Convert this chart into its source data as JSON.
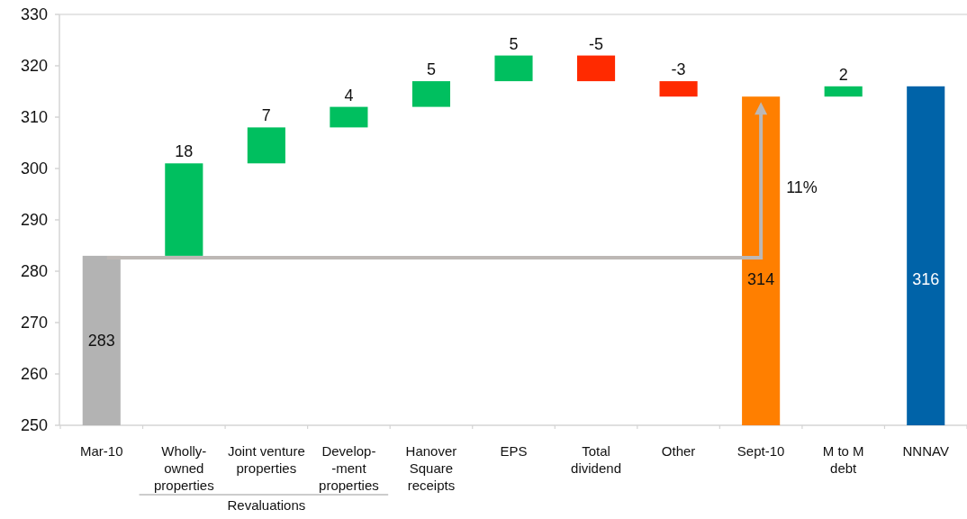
{
  "chart_data": {
    "type": "bar",
    "categories": [
      "Mar-10",
      "Wholly-\nowned\nproperties",
      "Joint venture\nproperties",
      "Develop-\n-ment\nproperties",
      "Hanover\nSquare\nreceipts",
      "EPS",
      "Total\ndividend",
      "Other",
      "Sept-10",
      "M to M\ndebt",
      "NNNAV"
    ],
    "values": [
      283,
      18,
      7,
      4,
      5,
      5,
      -5,
      -3,
      314,
      2,
      316
    ],
    "base": [
      null,
      283,
      301,
      308,
      312,
      317,
      322,
      317,
      null,
      314,
      null
    ],
    "colors": [
      "#b3b3b3",
      "#00bf5f",
      "#00bf5f",
      "#00bf5f",
      "#00bf5f",
      "#00bf5f",
      "#ff2a00",
      "#ff2a00",
      "#ff7f00",
      "#00bf5f",
      "#0063a8"
    ],
    "ylim": [
      250,
      330
    ],
    "yticks": [
      250,
      260,
      270,
      280,
      290,
      300,
      310,
      320,
      330
    ],
    "data_labels": true,
    "annotations": [
      "11%",
      "Revaluations"
    ]
  }
}
